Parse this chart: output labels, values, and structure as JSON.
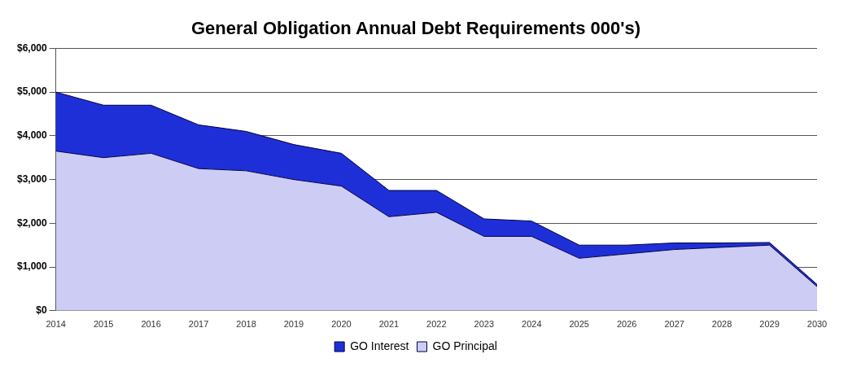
{
  "chart_data": {
    "type": "area",
    "title": "General Obligation Annual Debt Requirements 000's)",
    "categories": [
      "2014",
      "2015",
      "2016",
      "2017",
      "2018",
      "2019",
      "2020",
      "2021",
      "2022",
      "2023",
      "2024",
      "2025",
      "2026",
      "2027",
      "2028",
      "2029",
      "2030"
    ],
    "stacked": true,
    "series": [
      {
        "name": "GO Principal",
        "color": "#ccccf5",
        "values": [
          3650,
          3500,
          3600,
          3250,
          3200,
          3000,
          2850,
          2150,
          2250,
          1700,
          1700,
          1200,
          1300,
          1400,
          1450,
          1500,
          550
        ]
      },
      {
        "name": "GO Interest",
        "color": "#1f2fd8",
        "values": [
          1350,
          1200,
          1100,
          1000,
          900,
          800,
          750,
          600,
          500,
          400,
          350,
          300,
          200,
          150,
          100,
          60,
          50
        ]
      }
    ],
    "ylim": [
      0,
      6000
    ],
    "yticks": [
      {
        "value": 0,
        "label": "$0"
      },
      {
        "value": 1000,
        "label": "$1,000"
      },
      {
        "value": 2000,
        "label": "$2,000"
      },
      {
        "value": 3000,
        "label": "$3,000"
      },
      {
        "value": 4000,
        "label": "$4,000"
      },
      {
        "value": 5000,
        "label": "$5,000"
      },
      {
        "value": 6000,
        "label": "$6,000"
      }
    ],
    "grid": "y",
    "legend": "bottom"
  }
}
